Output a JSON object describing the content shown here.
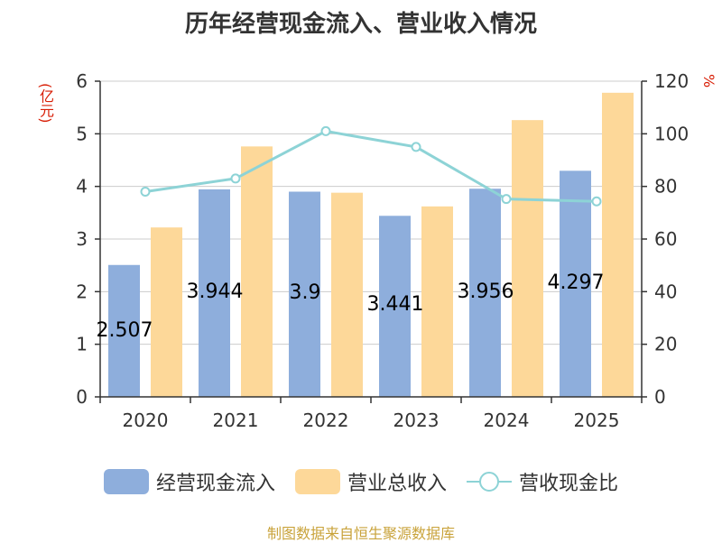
{
  "title": "历年经营现金流入、营业收入情况",
  "y_left_unit": "(亿元)",
  "y_right_unit": "%",
  "legend": {
    "cash_inflow": "经营现金流入",
    "revenue": "营业总收入",
    "ratio": "营收现金比"
  },
  "source": "制图数据来自恒生聚源数据库",
  "colors": {
    "cash_inflow": "#8eaedc",
    "revenue": "#fdd899",
    "ratio": "#8dd3d6",
    "title_unit": "#d81e06",
    "source": "#c9a33b"
  },
  "chart_data": {
    "type": "bar",
    "categories": [
      "2020",
      "2021",
      "2022",
      "2023",
      "2024",
      "2025"
    ],
    "series": [
      {
        "name": "经营现金流入",
        "type": "bar",
        "axis": "left",
        "values": [
          2.507,
          3.944,
          3.9,
          3.441,
          3.956,
          4.297
        ],
        "labels": [
          "2.507",
          "3.944",
          "3.9",
          "3.441",
          "3.956",
          "4.297"
        ]
      },
      {
        "name": "营业总收入",
        "type": "bar",
        "axis": "left",
        "values": [
          3.22,
          4.76,
          3.88,
          3.62,
          5.26,
          5.78
        ]
      },
      {
        "name": "营收现金比",
        "type": "line",
        "axis": "right",
        "values": [
          78,
          83,
          101,
          95,
          75.2,
          74.3
        ]
      }
    ],
    "y_left": {
      "min": 0,
      "max": 6,
      "ticks": [
        0,
        1,
        2,
        3,
        4,
        5,
        6
      ]
    },
    "y_right": {
      "min": 0,
      "max": 120,
      "ticks": [
        0,
        20,
        40,
        60,
        80,
        100,
        120
      ]
    },
    "grid": true,
    "legend_position": "bottom"
  }
}
